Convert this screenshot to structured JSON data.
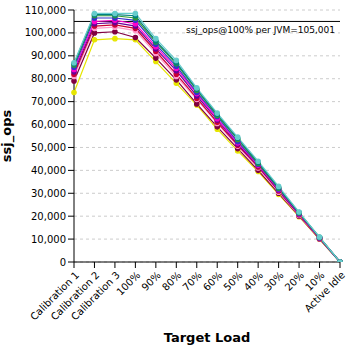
{
  "chart_data": {
    "type": "line",
    "x_label": "Target Load",
    "y_label": "ssj_ops",
    "categories": [
      "Calibration 1",
      "Calibration 2",
      "Calibration 3",
      "100%",
      "90%",
      "80%",
      "70%",
      "60%",
      "50%",
      "40%",
      "30%",
      "20%",
      "10%",
      "Active Idle"
    ],
    "series": [
      {
        "color": "#e6e600",
        "marker": "circle",
        "values": [
          74000,
          97000,
          97500,
          97000,
          87500,
          78000,
          68500,
          58000,
          48500,
          39500,
          29500,
          19800,
          9900,
          0
        ]
      },
      {
        "color": "#800040",
        "marker": "circle",
        "values": [
          79000,
          100000,
          100500,
          98000,
          89000,
          79500,
          69000,
          59000,
          49500,
          40000,
          30000,
          20000,
          10000,
          0
        ]
      },
      {
        "color": "#ff99cc",
        "marker": "circle",
        "values": [
          81000,
          102000,
          102500,
          101000,
          91000,
          81000,
          71000,
          60500,
          50500,
          41000,
          30500,
          20300,
          10200,
          0
        ]
      },
      {
        "color": "#cc0033",
        "marker": "circle",
        "values": [
          82000,
          103000,
          103500,
          102000,
          92000,
          82000,
          71500,
          61000,
          51000,
          41500,
          31000,
          20600,
          10300,
          0
        ]
      },
      {
        "color": "#660099",
        "marker": "circle",
        "values": [
          83000,
          104000,
          104500,
          103000,
          93000,
          83500,
          72500,
          62000,
          51500,
          42000,
          31300,
          20800,
          10400,
          0
        ]
      },
      {
        "color": "#ff00cc",
        "marker": "circle",
        "values": [
          84000,
          105000,
          105500,
          104000,
          94000,
          84500,
          73500,
          62500,
          52000,
          42300,
          31600,
          21000,
          10500,
          0
        ]
      },
      {
        "color": "#3333cc",
        "marker": "circle",
        "values": [
          85000,
          106500,
          106500,
          105500,
          95000,
          85500,
          74000,
          63500,
          52500,
          42700,
          31900,
          21200,
          10600,
          0
        ]
      },
      {
        "color": "#339933",
        "marker": "circle",
        "values": [
          86000,
          107500,
          107500,
          106500,
          96000,
          86500,
          75000,
          64000,
          53500,
          43000,
          32200,
          21400,
          10700,
          0
        ]
      },
      {
        "color": "#008080",
        "marker": "circle",
        "values": [
          86500,
          108000,
          108000,
          107500,
          96500,
          87000,
          75500,
          64500,
          54000,
          43500,
          32500,
          21600,
          10800,
          0
        ]
      },
      {
        "color": "#66cccc",
        "marker": "circle",
        "values": [
          87000,
          108500,
          108500,
          108500,
          97500,
          88000,
          76000,
          65000,
          54500,
          44000,
          33000,
          21800,
          10900,
          0
        ]
      }
    ],
    "ylim": [
      0,
      110000
    ],
    "yticks": [
      0,
      {
        "value": 10000,
        "label": "10,000"
      },
      {
        "value": 20000,
        "label": "20,000"
      },
      {
        "value": 30000,
        "label": "30,000"
      },
      {
        "value": 40000,
        "label": "40,000"
      },
      {
        "value": 50000,
        "label": "50,000"
      },
      {
        "value": 60000,
        "label": "60,000"
      },
      {
        "value": 70000,
        "label": "70,000"
      },
      {
        "value": 80000,
        "label": "80,000"
      },
      {
        "value": 90000,
        "label": "90,000"
      },
      {
        "value": 100000,
        "label": "100,000"
      },
      {
        "value": 110000,
        "label": "110,000"
      }
    ],
    "grid": "y",
    "annotations": [
      {
        "text": "ssj_ops@100% per JVM=105,001",
        "y": 105001
      }
    ]
  }
}
